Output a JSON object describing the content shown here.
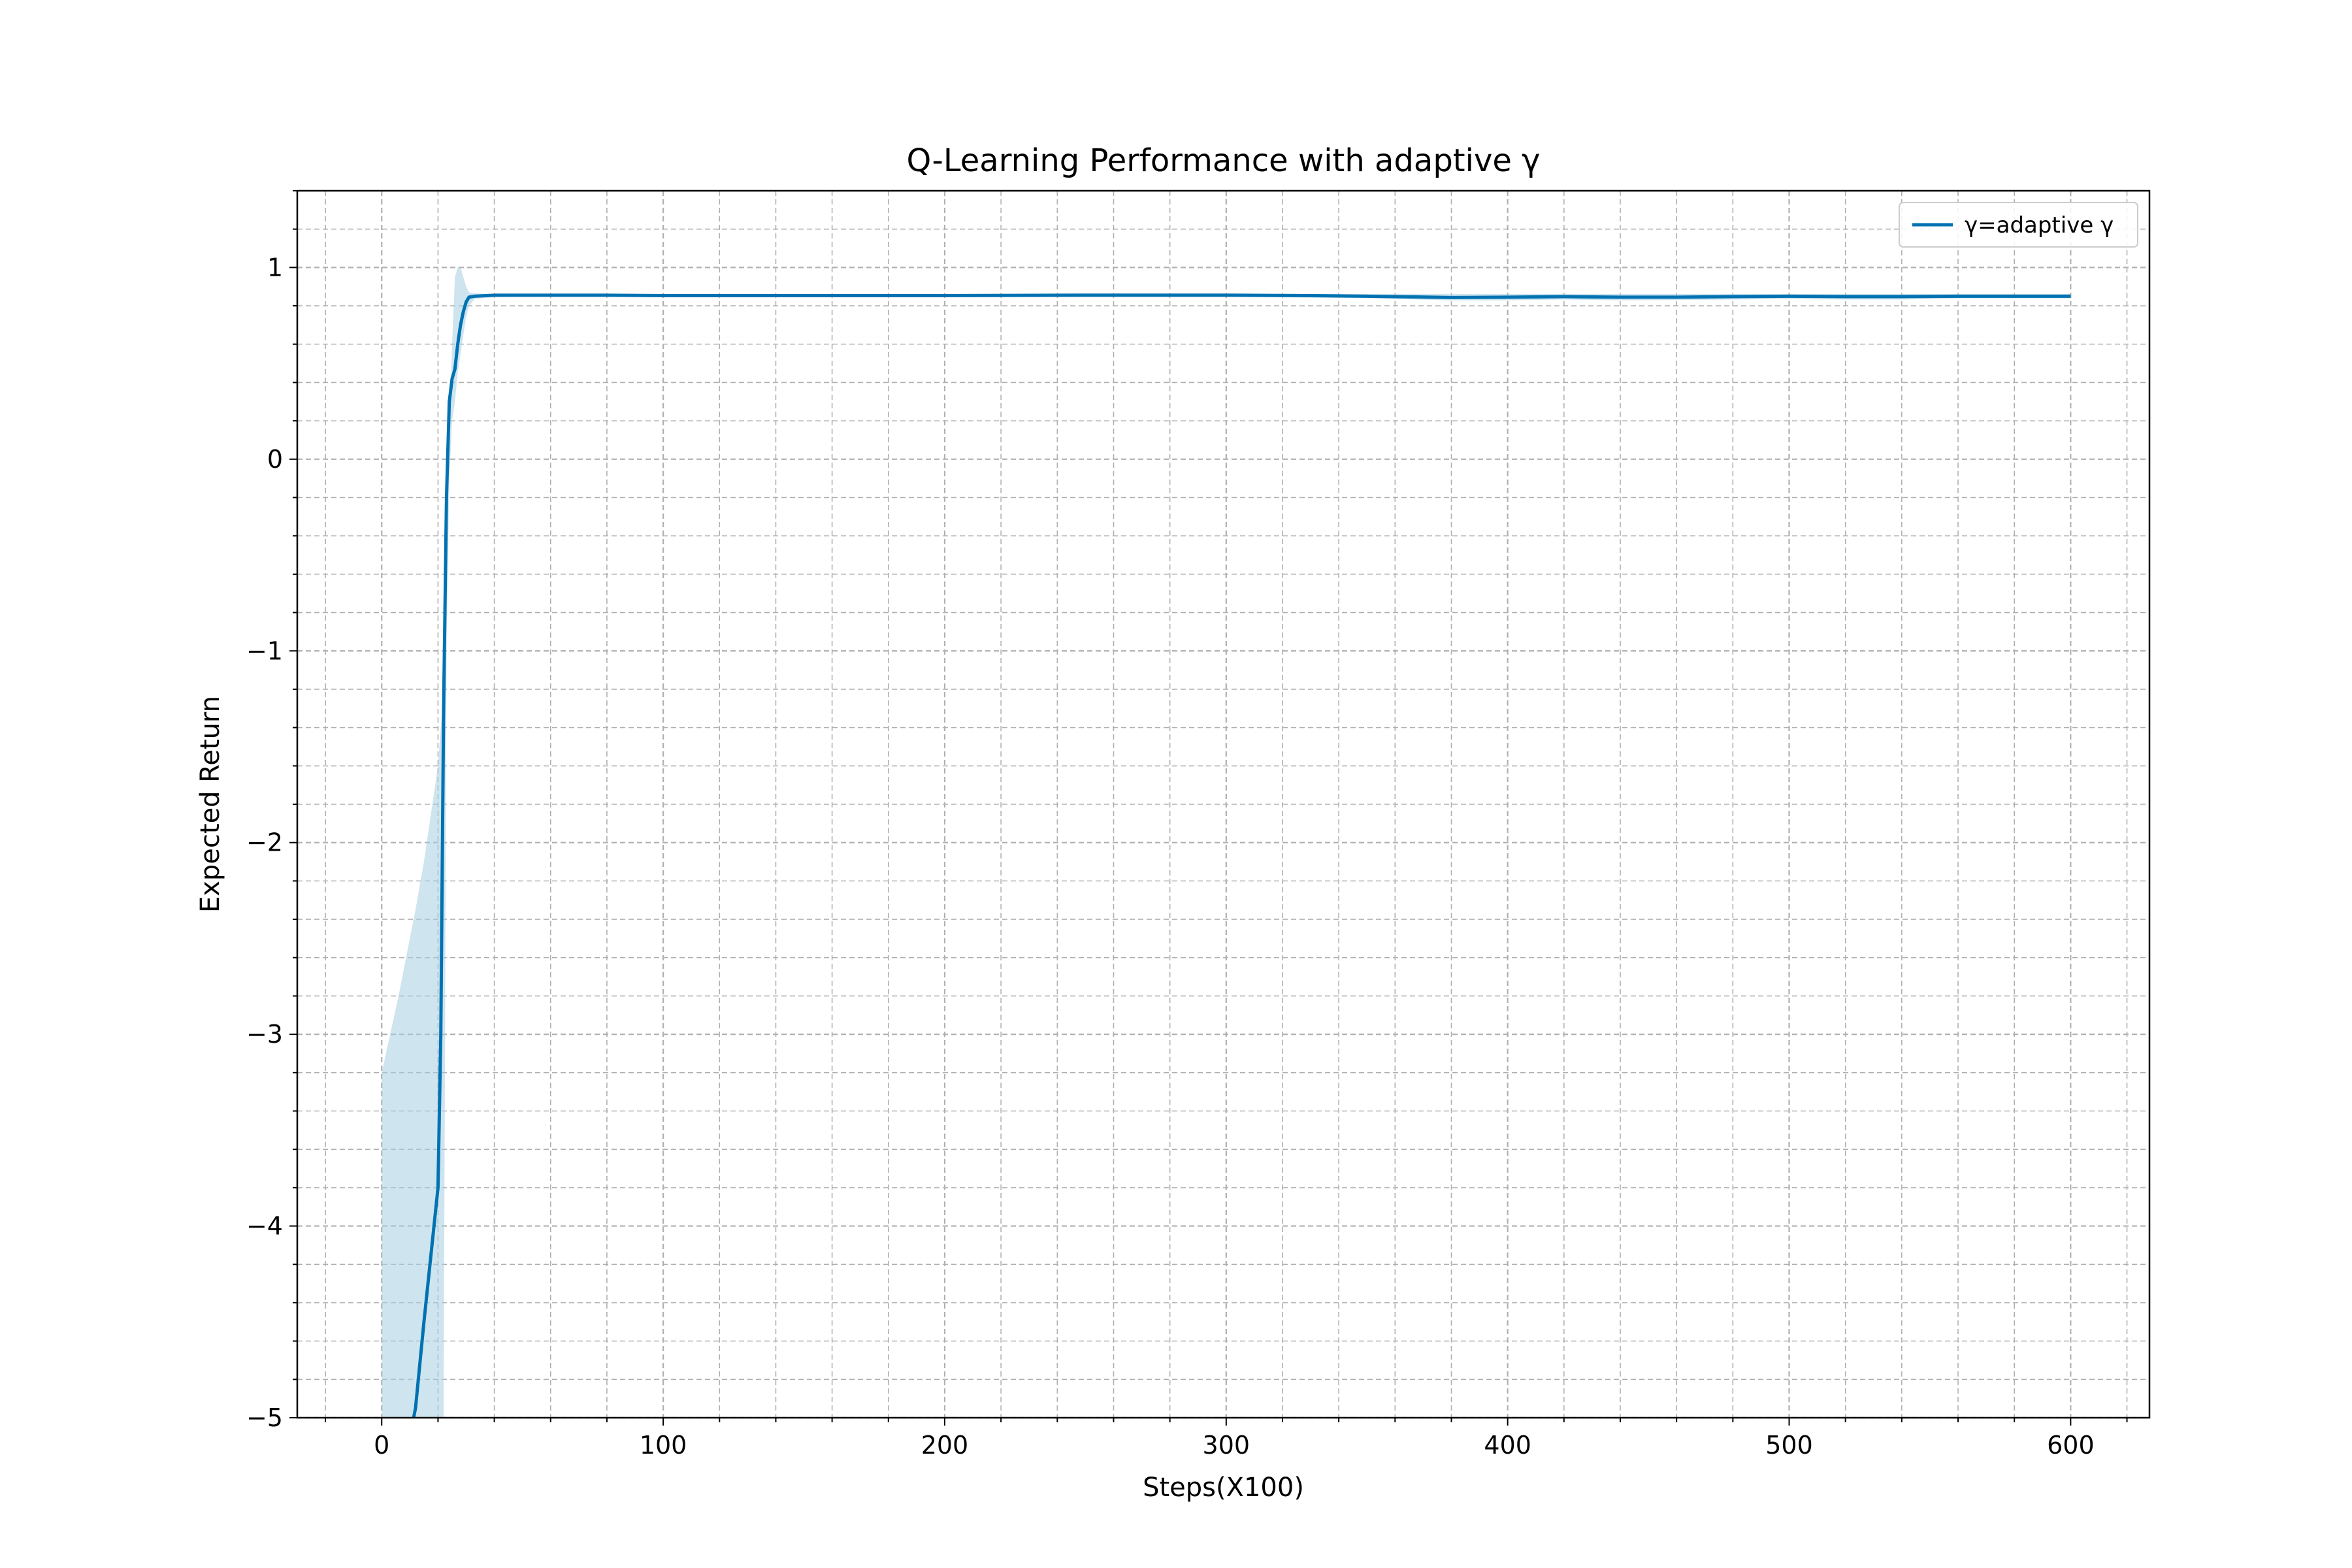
{
  "chart_data": {
    "type": "line",
    "title": "Q-Learning Performance with adaptive γ",
    "xlabel": "Steps(X100)",
    "ylabel": "Expected Return",
    "xlim": [
      -30,
      628
    ],
    "ylim": [
      -5,
      1.4
    ],
    "xticks": [
      0,
      100,
      200,
      300,
      400,
      500,
      600
    ],
    "yticks": [
      -5,
      -4,
      -3,
      -2,
      -1,
      0,
      1
    ],
    "grid": true,
    "legend_position": "top-right",
    "colors": {
      "line": "#0072B2",
      "band": "#A6CDE2",
      "grid": "#b0b0b0"
    },
    "series": [
      {
        "name": "γ=adaptive γ",
        "x": [
          0,
          6,
          10,
          12,
          15,
          20,
          21,
          22,
          23,
          24,
          25,
          26,
          27,
          28,
          29,
          30,
          31,
          33,
          40,
          60,
          80,
          100,
          150,
          200,
          250,
          300,
          330,
          350,
          380,
          400,
          420,
          440,
          460,
          480,
          500,
          520,
          540,
          560,
          580,
          600
        ],
        "y": [
          -5.8,
          -5.4,
          -5.1,
          -4.95,
          -4.5,
          -3.8,
          -3.0,
          -1.3,
          -0.2,
          0.3,
          0.42,
          0.47,
          0.6,
          0.7,
          0.77,
          0.82,
          0.845,
          0.85,
          0.855,
          0.855,
          0.855,
          0.853,
          0.853,
          0.853,
          0.855,
          0.855,
          0.853,
          0.85,
          0.843,
          0.845,
          0.848,
          0.845,
          0.845,
          0.848,
          0.85,
          0.848,
          0.848,
          0.85,
          0.85,
          0.85
        ],
        "band_upper": [
          -3.2,
          -2.8,
          -2.5,
          -2.35,
          -2.1,
          -1.6,
          -1.4,
          -1.2,
          -0.4,
          0.1,
          0.6,
          0.95,
          1.0,
          1.0,
          0.95,
          0.9,
          0.87,
          0.865,
          0.862,
          0.862,
          0.862,
          0.862,
          0.862,
          0.862,
          0.865,
          0.865,
          0.862,
          0.862,
          0.862,
          0.862,
          0.862,
          0.862,
          0.862,
          0.862,
          0.862,
          0.862,
          0.862,
          0.862,
          0.862,
          0.862
        ],
        "band_lower": [
          -5,
          -5,
          -5,
          -5,
          -5,
          -5,
          -5,
          -5,
          -1.0,
          -0.1,
          0.2,
          0.3,
          0.45,
          0.55,
          0.65,
          0.74,
          0.8,
          0.835,
          0.845,
          0.848,
          0.848,
          0.845,
          0.845,
          0.845,
          0.848,
          0.848,
          0.842,
          0.84,
          0.828,
          0.828,
          0.833,
          0.828,
          0.83,
          0.833,
          0.835,
          0.833,
          0.833,
          0.838,
          0.838,
          0.838
        ],
        "band_x_end": 20
      }
    ]
  }
}
